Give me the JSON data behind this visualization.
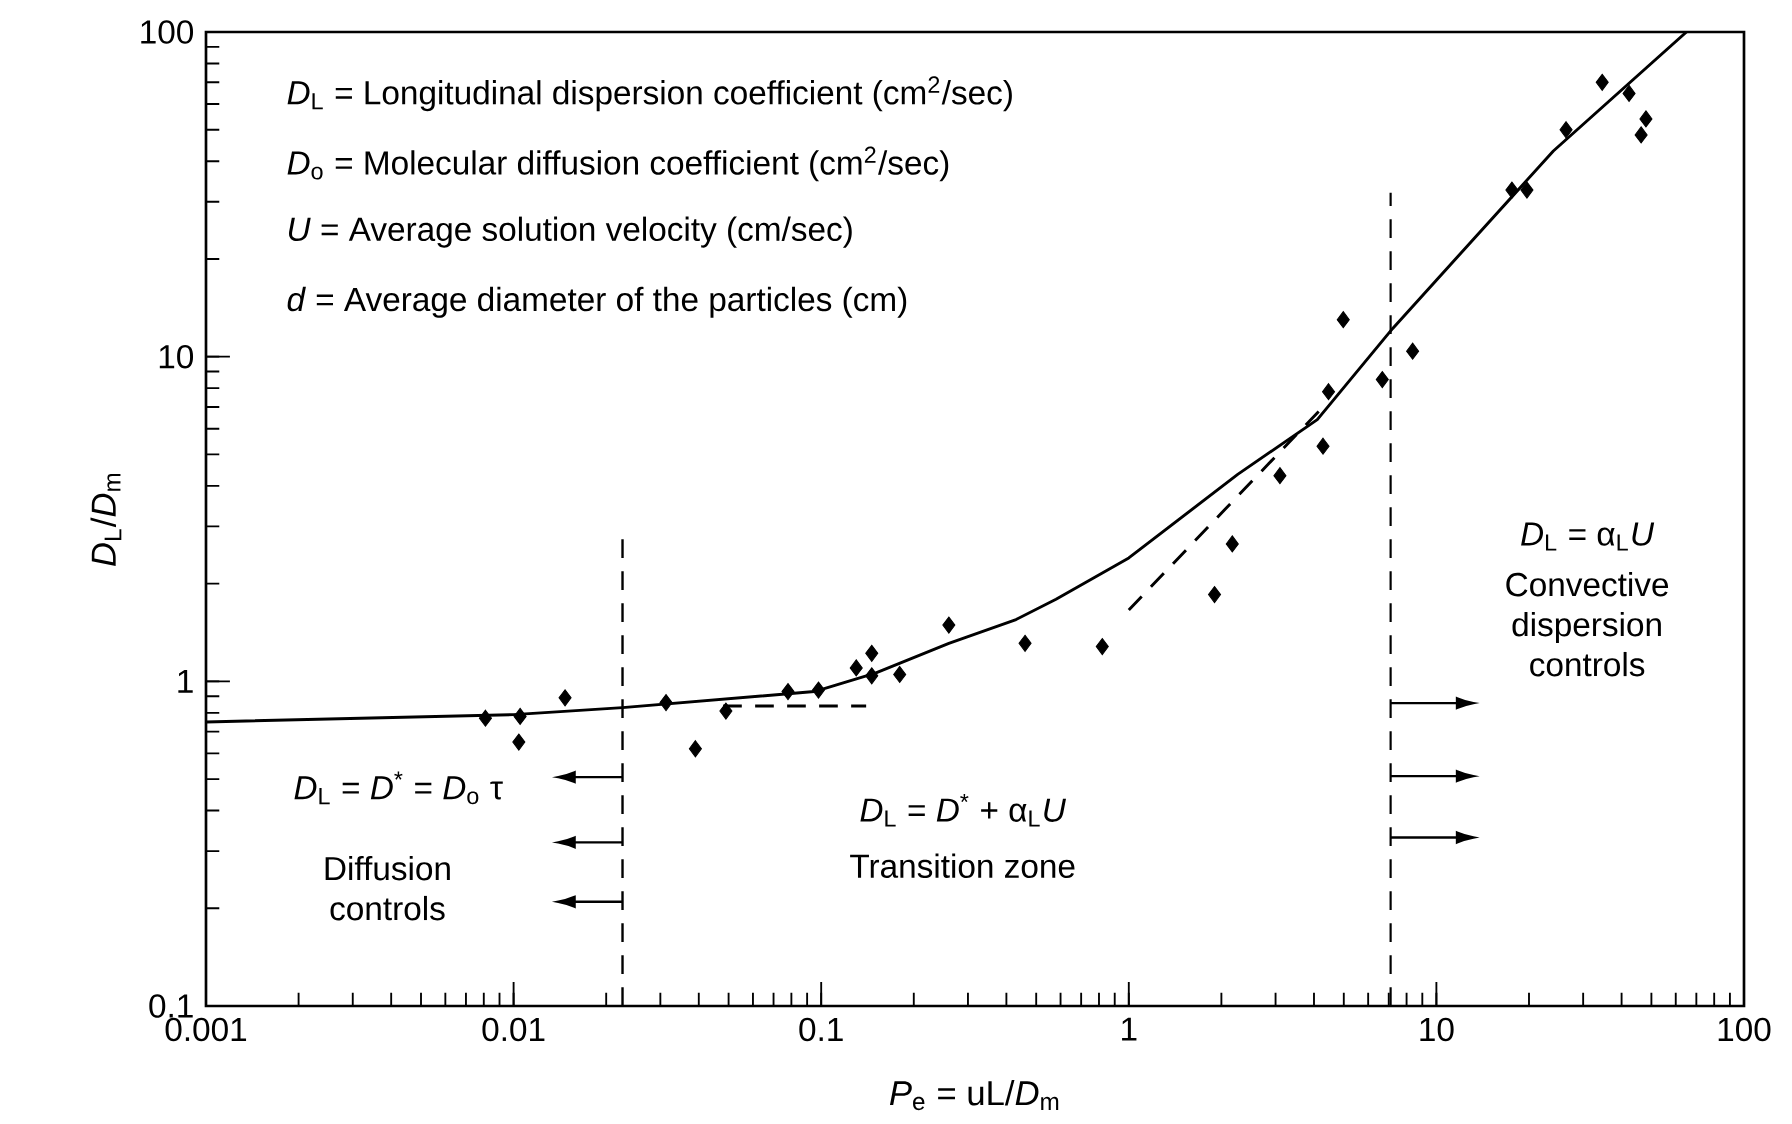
{
  "chart_data": {
    "type": "scatter",
    "xlabel": "*P*$_{e}$ = uL/*D*$_{m}$",
    "ylabel": "*D*$_{L}$/*D*$_{m}$",
    "log": "xy",
    "xlim": [
      0.001,
      100
    ],
    "ylim": [
      0.1,
      100
    ],
    "xticks": [
      0.001,
      0.01,
      0.1,
      1,
      10,
      100
    ],
    "yticks": [
      0.1,
      1,
      10,
      100
    ],
    "grid": false,
    "series": [
      {
        "color": "#000000",
        "marker": "diamond",
        "x": [
          0.0081,
          0.0105,
          0.0104,
          0.0147,
          0.0313,
          0.039,
          0.049,
          0.078,
          0.098,
          0.13,
          0.146,
          0.146,
          0.18,
          0.26,
          0.46,
          0.82,
          1.9,
          2.17,
          3.1,
          4.28,
          4.46,
          4.98,
          6.67,
          8.37,
          17.6,
          19.7,
          26.4,
          34.6,
          42.3,
          48,
          46.3
        ],
        "values": [
          0.77,
          0.78,
          0.65,
          0.89,
          0.86,
          0.62,
          0.81,
          0.93,
          0.94,
          1.1,
          1.22,
          1.04,
          1.05,
          1.49,
          1.31,
          1.28,
          1.85,
          2.65,
          4.3,
          5.3,
          7.8,
          13,
          8.5,
          10.4,
          32.6,
          32.6,
          50,
          70,
          64.7,
          54,
          48.2
        ]
      },
      {
        "type": "line",
        "color": "#000000",
        "line_style": "solid",
        "x": [
          0.001,
          0.01,
          0.0226,
          0.095,
          0.15,
          0.26,
          0.43,
          0.58,
          1.0,
          2.26,
          4.1,
          7.2,
          24,
          65
        ],
        "values": [
          0.75,
          0.79,
          0.83,
          0.93,
          1.06,
          1.31,
          1.55,
          1.79,
          2.4,
          4.34,
          6.4,
          12.2,
          43,
          100
        ]
      },
      {
        "type": "line",
        "color": "#000000",
        "line_style": "dashed",
        "x": [
          0.048,
          0.14
        ],
        "values": [
          0.84,
          0.84
        ]
      },
      {
        "type": "line",
        "color": "#000000",
        "line_style": "dashed",
        "x": [
          1.0,
          4.4
        ],
        "values": [
          1.66,
          7.2
        ]
      }
    ],
    "ref_lines": [
      {
        "axis": "x",
        "value": 0.0226,
        "color": "#000000",
        "line_style": "dashed"
      },
      {
        "axis": "x",
        "value": 7.1,
        "color": "#000000",
        "line_style": "dashed"
      }
    ],
    "annotations": [
      "*D*$_{L}$ = Longitudinal dispersion coefficient (cm$^{2}$/sec)",
      "*D*$_{o}$ = Molecular diffusion coefficient (cm$^{2}$/sec)",
      "*U* = Average solution velocity (cm/sec)",
      "*d* = Average diameter of the particles (cm)",
      "*D*$_{L}$ = *D*$^{*}$ = *D*$_{o}$ τ",
      "Diffusion controls",
      "*D*$_{L}$ = *D*$^{*}$ + α$_{L}$*U*",
      "Transition zone",
      "*D*$_{L}$ = α$_{L}$*U*",
      "Convective dispersion controls"
    ]
  }
}
